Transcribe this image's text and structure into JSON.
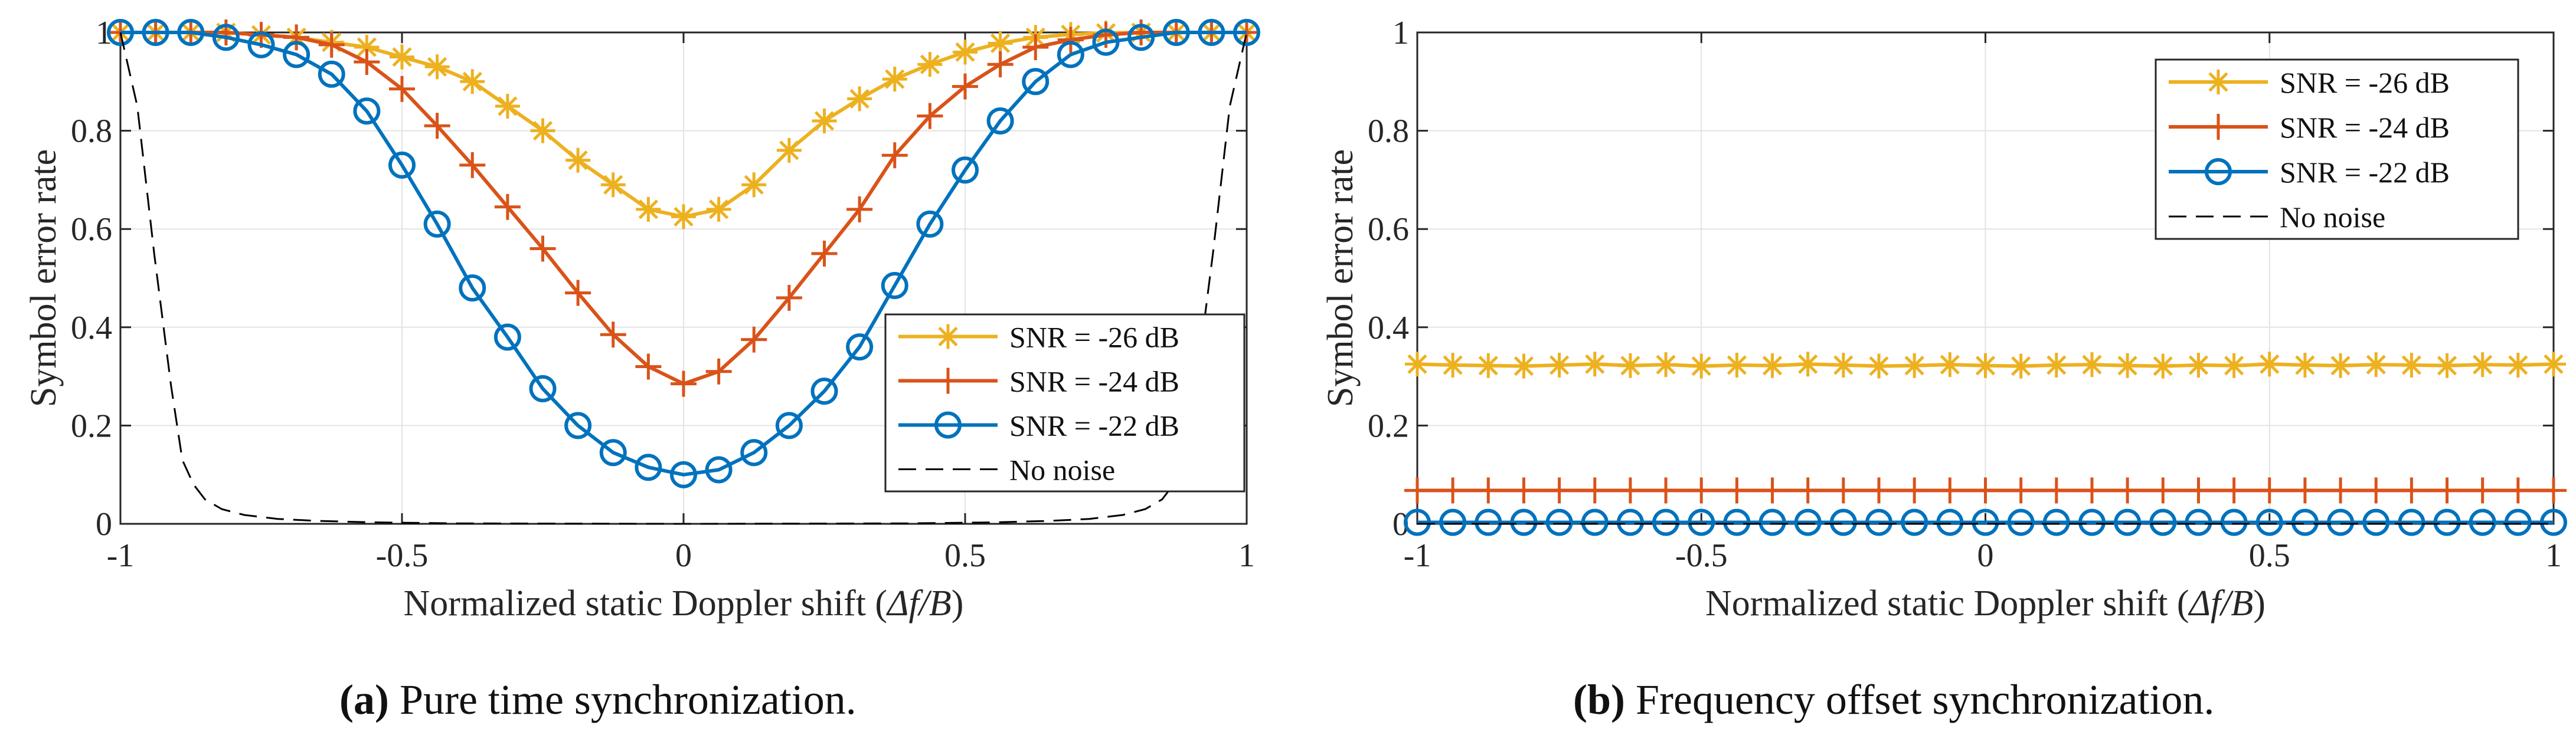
{
  "chart_data": [
    {
      "type": "line",
      "panel": "a",
      "xlabel_text": "Normalized static Doppler shift (",
      "xlabel_math": "Δf/B",
      "xlabel_close": ")",
      "ylabel": "Symbol error rate",
      "xlim": [
        -1,
        1
      ],
      "ylim": [
        0,
        1
      ],
      "grid": true,
      "legend_position": "lower-right",
      "xticks": [
        -1,
        -0.5,
        0,
        0.5,
        1
      ],
      "xtick_labels": [
        "-1",
        "-0.5",
        "0",
        "0.5",
        "1"
      ],
      "yticks": [
        0,
        0.2,
        0.4,
        0.6,
        0.8,
        1
      ],
      "ytick_labels": [
        "0",
        "0.2",
        "0.4",
        "0.6",
        "0.8",
        "1"
      ],
      "x": [
        -1,
        -0.9375,
        -0.875,
        -0.8125,
        -0.75,
        -0.6875,
        -0.625,
        -0.5625,
        -0.5,
        -0.4375,
        -0.375,
        -0.3125,
        -0.25,
        -0.1875,
        -0.125,
        -0.0625,
        0,
        0.0625,
        0.125,
        0.1875,
        0.25,
        0.3125,
        0.375,
        0.4375,
        0.5,
        0.5625,
        0.625,
        0.6875,
        0.75,
        0.8125,
        0.875,
        0.9375,
        1
      ],
      "series": [
        {
          "name": "SNR = -26 dB",
          "color": "#EDB120",
          "marker": "star",
          "values": [
            1,
            1,
            1,
            1,
            0.995,
            0.99,
            0.98,
            0.97,
            0.95,
            0.93,
            0.9,
            0.85,
            0.8,
            0.74,
            0.69,
            0.64,
            0.625,
            0.64,
            0.69,
            0.76,
            0.82,
            0.865,
            0.905,
            0.935,
            0.96,
            0.978,
            0.99,
            0.996,
            0.999,
            1,
            1,
            1,
            1
          ]
        },
        {
          "name": "SNR = -24 dB",
          "color": "#D95319",
          "marker": "plus",
          "values": [
            1,
            1,
            1,
            1,
            0.995,
            0.99,
            0.975,
            0.94,
            0.885,
            0.81,
            0.73,
            0.645,
            0.56,
            0.47,
            0.385,
            0.32,
            0.285,
            0.31,
            0.375,
            0.46,
            0.55,
            0.64,
            0.75,
            0.83,
            0.89,
            0.935,
            0.97,
            0.985,
            0.995,
            1,
            1,
            1,
            1
          ]
        },
        {
          "name": "SNR = -22 dB",
          "color": "#0072BD",
          "marker": "circle",
          "values": [
            1,
            1,
            1,
            0.99,
            0.975,
            0.955,
            0.915,
            0.84,
            0.73,
            0.61,
            0.48,
            0.38,
            0.275,
            0.2,
            0.145,
            0.115,
            0.1,
            0.11,
            0.145,
            0.2,
            0.27,
            0.36,
            0.485,
            0.61,
            0.72,
            0.82,
            0.9,
            0.955,
            0.98,
            0.99,
            1,
            1,
            1
          ]
        },
        {
          "name": "No noise",
          "color": "#000000",
          "marker": "none",
          "dashed": true,
          "x": [
            -1,
            -0.97,
            -0.94,
            -0.91,
            -0.89,
            -0.87,
            -0.85,
            -0.82,
            -0.78,
            -0.72,
            -0.65,
            -0.55,
            -0.4,
            -0.2,
            0,
            0.2,
            0.4,
            0.55,
            0.65,
            0.72,
            0.78,
            0.82,
            0.85,
            0.87,
            0.89,
            0.91,
            0.94,
            0.97,
            1
          ],
          "values": [
            1,
            0.85,
            0.55,
            0.28,
            0.13,
            0.08,
            0.05,
            0.03,
            0.018,
            0.01,
            0.006,
            0.003,
            0.001,
            0.0005,
            0,
            0.0005,
            0.001,
            0.003,
            0.006,
            0.01,
            0.018,
            0.03,
            0.05,
            0.08,
            0.13,
            0.28,
            0.55,
            0.85,
            1
          ]
        }
      ]
    },
    {
      "type": "line",
      "panel": "b",
      "xlabel_text": "Normalized static Doppler shift (",
      "xlabel_math": "Δf/B",
      "xlabel_close": ")",
      "ylabel": "Symbol error rate",
      "xlim": [
        -1,
        1
      ],
      "ylim": [
        0,
        1
      ],
      "grid": true,
      "legend_position": "top-right",
      "xticks": [
        -1,
        -0.5,
        0,
        0.5,
        1
      ],
      "xtick_labels": [
        "-1",
        "-0.5",
        "0",
        "0.5",
        "1"
      ],
      "yticks": [
        0,
        0.2,
        0.4,
        0.6,
        0.8,
        1
      ],
      "ytick_labels": [
        "0",
        "0.2",
        "0.4",
        "0.6",
        "0.8",
        "1"
      ],
      "x": [
        -1,
        -0.9375,
        -0.875,
        -0.8125,
        -0.75,
        -0.6875,
        -0.625,
        -0.5625,
        -0.5,
        -0.4375,
        -0.375,
        -0.3125,
        -0.25,
        -0.1875,
        -0.125,
        -0.0625,
        0,
        0.0625,
        0.125,
        0.1875,
        0.25,
        0.3125,
        0.375,
        0.4375,
        0.5,
        0.5625,
        0.625,
        0.6875,
        0.75,
        0.8125,
        0.875,
        0.9375,
        1
      ],
      "series": [
        {
          "name": "SNR = -26 dB",
          "color": "#EDB120",
          "marker": "star",
          "values": [
            0.325,
            0.323,
            0.322,
            0.321,
            0.323,
            0.325,
            0.322,
            0.324,
            0.321,
            0.323,
            0.322,
            0.325,
            0.323,
            0.321,
            0.322,
            0.324,
            0.322,
            0.321,
            0.323,
            0.324,
            0.322,
            0.321,
            0.323,
            0.322,
            0.325,
            0.323,
            0.322,
            0.324,
            0.323,
            0.322,
            0.324,
            0.323,
            0.325
          ]
        },
        {
          "name": "SNR = -24 dB",
          "color": "#D95319",
          "marker": "plus",
          "values": [
            0.068,
            0.068,
            0.068,
            0.068,
            0.068,
            0.068,
            0.068,
            0.068,
            0.068,
            0.068,
            0.068,
            0.068,
            0.068,
            0.068,
            0.068,
            0.068,
            0.068,
            0.068,
            0.068,
            0.068,
            0.068,
            0.068,
            0.068,
            0.068,
            0.068,
            0.068,
            0.068,
            0.068,
            0.068,
            0.068,
            0.068,
            0.068,
            0.068
          ]
        },
        {
          "name": "SNR = -22 dB",
          "color": "#0072BD",
          "marker": "circle",
          "values": [
            0.003,
            0.003,
            0.003,
            0.003,
            0.003,
            0.003,
            0.003,
            0.003,
            0.003,
            0.003,
            0.003,
            0.003,
            0.003,
            0.003,
            0.003,
            0.003,
            0.003,
            0.003,
            0.003,
            0.003,
            0.003,
            0.003,
            0.003,
            0.003,
            0.003,
            0.003,
            0.003,
            0.003,
            0.003,
            0.003,
            0.003,
            0.003,
            0.003
          ]
        },
        {
          "name": "No noise",
          "color": "#000000",
          "marker": "none",
          "dashed": true,
          "x": [
            -1,
            1
          ],
          "values": [
            0,
            0
          ]
        }
      ]
    }
  ],
  "captions": [
    {
      "tag": "(a)",
      "text": " Pure time synchronization."
    },
    {
      "tag": "(b)",
      "text": " Frequency offset synchronization."
    }
  ]
}
